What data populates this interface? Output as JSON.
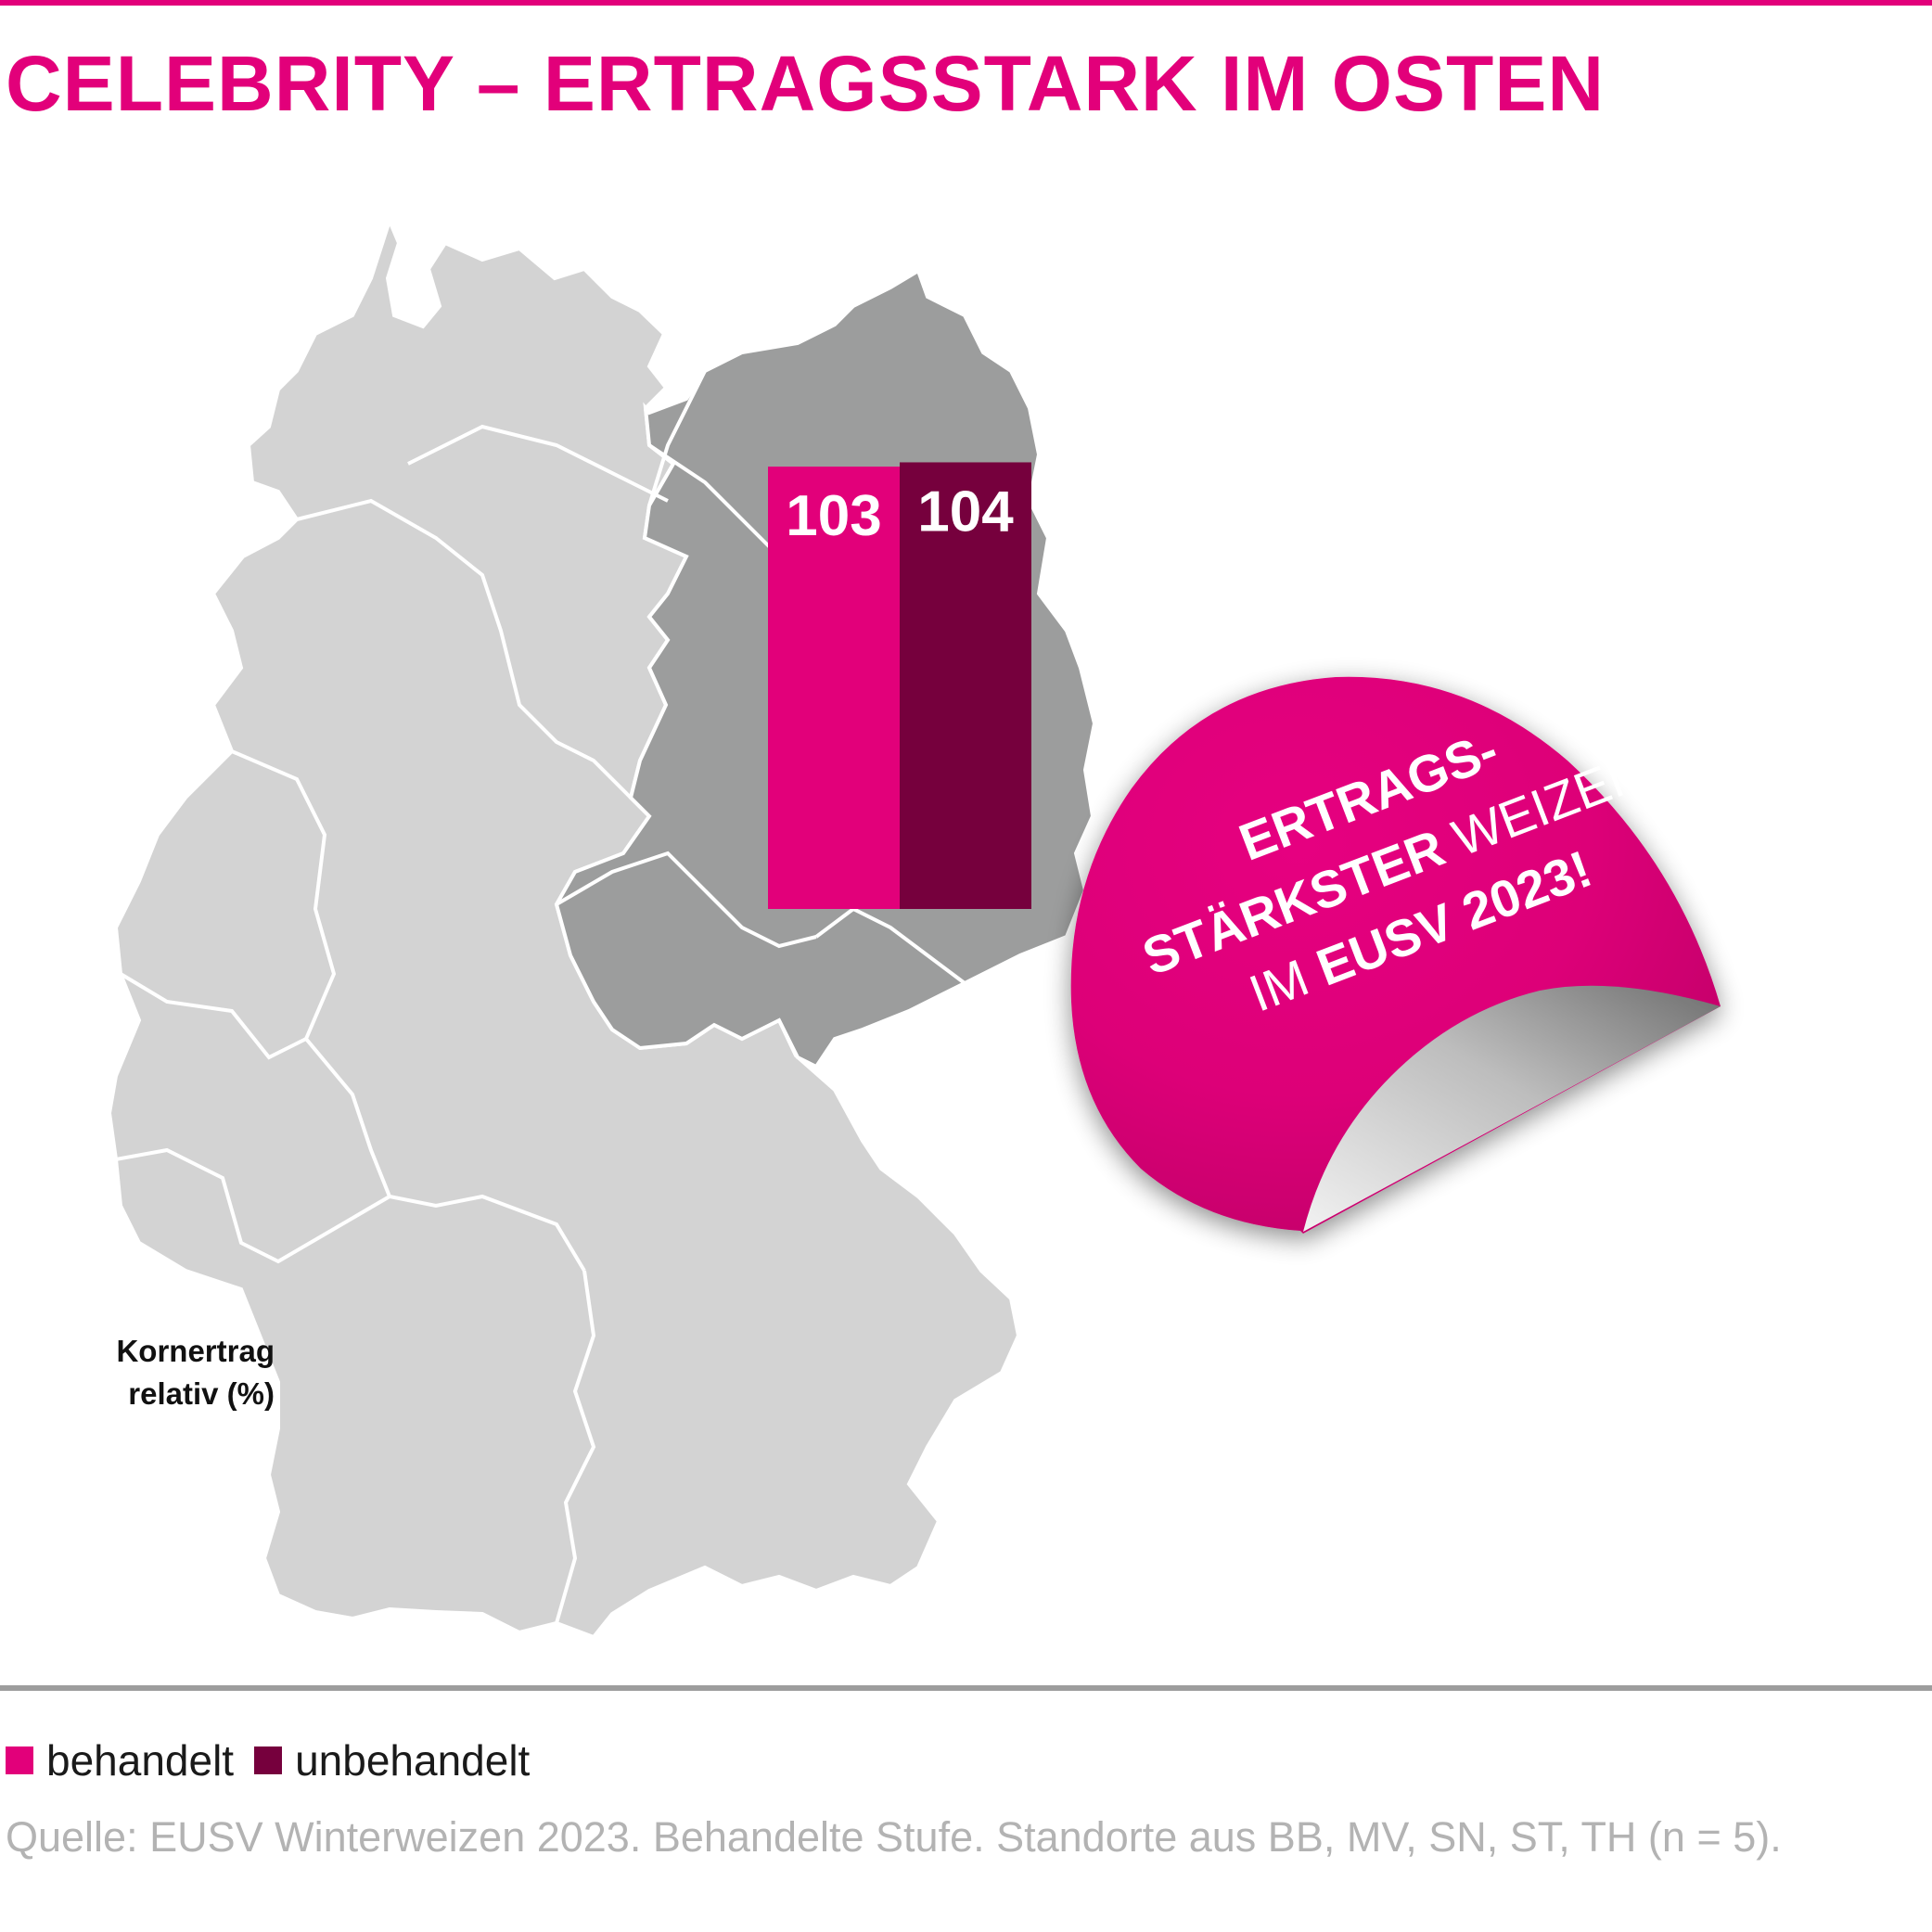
{
  "title": "CELEBRITY – ERTRAGSSTARK IM OSTEN",
  "colors": {
    "accent": "#e2007a",
    "dark_series": "#76003d",
    "map_light": "#d3d3d3",
    "map_dark": "#9c9d9d",
    "source_text": "#b3b3b3"
  },
  "chart_data": {
    "type": "bar",
    "categories": [
      ""
    ],
    "series": [
      {
        "name": "behandelt",
        "values": [
          103
        ],
        "color": "#e2007a"
      },
      {
        "name": "unbehandelt",
        "values": [
          104
        ],
        "color": "#76003d"
      }
    ],
    "value_labels": [
      "103",
      "104"
    ],
    "ylabel_lines": [
      "Kornertrag",
      "relativ (%)"
    ],
    "legend": {
      "position": "bottom-left"
    },
    "grid": false
  },
  "badge": {
    "line1": "ERTRAGS-",
    "line2_bold": "STÄRKSTER",
    "line2_light": " WEIZEN",
    "line3_light": "IM ",
    "line3_bold": "EUSV 2023!"
  },
  "legend_items": [
    {
      "label": "behandelt",
      "color": "#e2007a"
    },
    {
      "label": "unbehandelt",
      "color": "#76003d"
    }
  ],
  "source": "Quelle: EUSV Winterweizen 2023. Behandelte Stufe. Standorte aus BB, MV, SN, ST, TH (n = 5)."
}
